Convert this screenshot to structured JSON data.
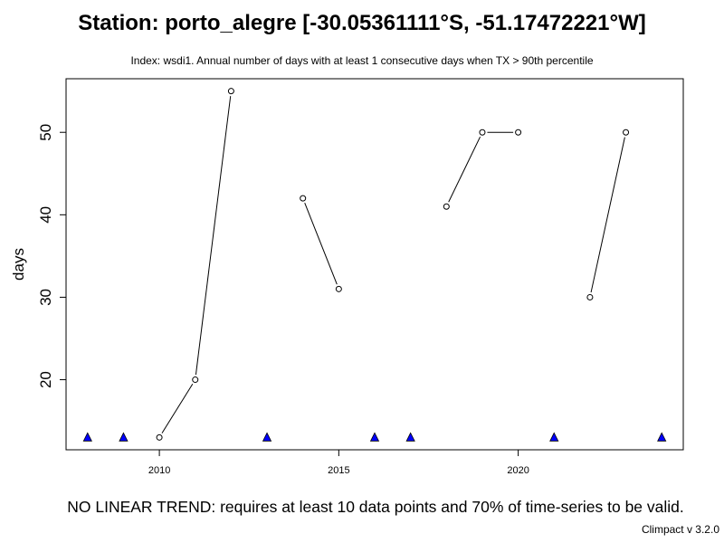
{
  "chart_data": {
    "type": "line",
    "title": "Station: porto_alegre [-30.05361111°S, -51.17472221°W]",
    "subtitle": "Index: wsdi1. Annual number of days with at least 1 consecutive days when TX > 90th percentile",
    "ylabel": "days",
    "xlabel": "",
    "x_ticks": [
      2010,
      2015,
      2020
    ],
    "y_ticks": [
      20,
      30,
      40,
      50
    ],
    "xlim": [
      2007.4,
      2024.6
    ],
    "ylim": [
      11.5,
      56.5
    ],
    "grid": false,
    "series": [
      {
        "x": [
          2008,
          2009,
          2010,
          2011,
          2012,
          2013,
          2014,
          2015,
          2016,
          2017,
          2018,
          2019,
          2020,
          2021,
          2022,
          2023,
          2024
        ],
        "y": [
          null,
          null,
          13,
          20,
          55,
          null,
          42,
          31,
          null,
          null,
          41,
          50,
          50,
          null,
          30,
          50,
          null
        ]
      }
    ],
    "missing_years": [
      2008,
      2009,
      2013,
      2016,
      2017,
      2021,
      2024
    ],
    "missing_marker_y": 13,
    "colors": {
      "missing_marker": "#0000ff",
      "line": "#000000"
    }
  },
  "footer_text": "NO LINEAR TREND: requires at least 10 data points and 70% of time-series to be valid.",
  "version_text": "Climpact v 3.2.0"
}
